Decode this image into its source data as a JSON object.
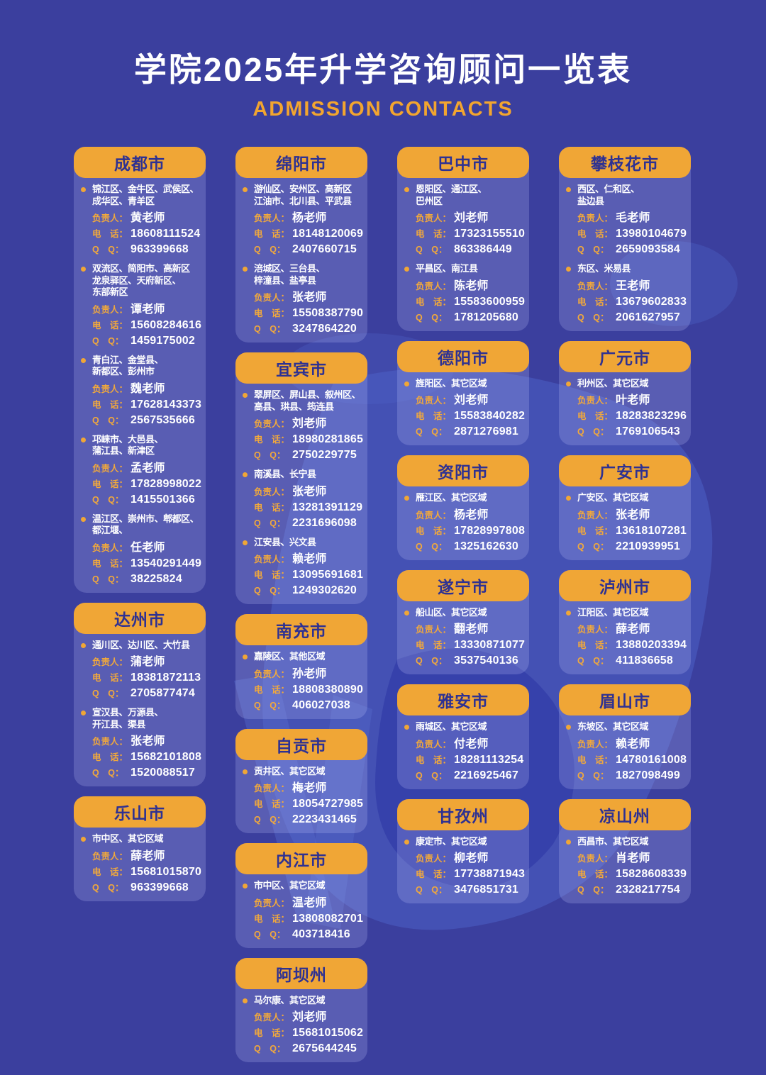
{
  "page": {
    "title": "学院2025年升学咨询顾问一览表",
    "subtitle": "ADMISSION CONTACTS"
  },
  "labels": {
    "person": "负责人：",
    "phone": "电　话：",
    "qq": "Q　Q："
  },
  "colors": {
    "background": "#3B3F9E",
    "card_background": "rgba(196,202,255,0.22)",
    "header_orange": "#F0A636",
    "header_text": "#2E3192",
    "accent_orange": "#F2A52F",
    "text_white": "#FFFFFF",
    "map_blob_light": "#4E63C9",
    "map_blob_dark": "#2B34A4"
  },
  "columns": [
    {
      "cards": [
        {
          "city": "成都市",
          "entries": [
            {
              "regions": "锦江区、金牛区、武侯区、\n成华区、青羊区",
              "person": "黄老师",
              "phone": "18608111524",
              "qq": "963399668"
            },
            {
              "regions": "双流区、简阳市、高新区\n龙泉驿区、天府新区、\n东部新区",
              "person": "谭老师",
              "phone": "15608284616",
              "qq": "1459175002"
            },
            {
              "regions": "青白江、金堂县、\n新都区、彭州市",
              "person": "魏老师",
              "phone": "17628143373",
              "qq": "2567535666"
            },
            {
              "regions": "邛崃市、大邑县、\n蒲江县、新津区",
              "person": "孟老师",
              "phone": "17828998022",
              "qq": "1415501366"
            },
            {
              "regions": "温江区、崇州市、郫都区、\n都江堰、",
              "person": "任老师",
              "phone": "13540291449",
              "qq": "38225824"
            }
          ]
        },
        {
          "city": "达州市",
          "entries": [
            {
              "regions": "通川区、达川区、大竹县",
              "person": "蒲老师",
              "phone": "18381872113",
              "qq": "2705877474"
            },
            {
              "regions": "宣汉县、万源县、\n开江县、渠县",
              "person": "张老师",
              "phone": "15682101808",
              "qq": "1520088517"
            }
          ]
        },
        {
          "city": "乐山市",
          "entries": [
            {
              "regions": "市中区、其它区域",
              "person": "薛老师",
              "phone": "15681015870",
              "qq": "963399668"
            }
          ]
        }
      ]
    },
    {
      "cards": [
        {
          "city": "绵阳市",
          "entries": [
            {
              "regions": "游仙区、安州区、高新区\n江油市、北川县、平武县",
              "person": "杨老师",
              "phone": "18148120069",
              "qq": "2407660715"
            },
            {
              "regions": "涪城区、三台县、\n梓潼县、盐亭县",
              "person": "张老师",
              "phone": "15508387790",
              "qq": "3247864220"
            }
          ]
        },
        {
          "city": "宜宾市",
          "entries": [
            {
              "regions": "翠屏区、屏山县、叙州区、\n高县、珙县、筠连县",
              "person": "刘老师",
              "phone": "18980281865",
              "qq": "2750229775"
            },
            {
              "regions": "南溪县、长宁县",
              "person": "张老师",
              "phone": "13281391129",
              "qq": "2231696098"
            },
            {
              "regions": "江安县、兴文县",
              "person": "赖老师",
              "phone": "13095691681",
              "qq": "1249302620"
            }
          ]
        },
        {
          "city": "南充市",
          "entries": [
            {
              "regions": "嘉陵区、其他区域",
              "person": "孙老师",
              "phone": "18808380890",
              "qq": "406027038"
            }
          ]
        },
        {
          "city": "自贡市",
          "entries": [
            {
              "regions": "贡井区、其它区域",
              "person": "梅老师",
              "phone": "18054727985",
              "qq": "2223431465"
            }
          ]
        },
        {
          "city": "内江市",
          "entries": [
            {
              "regions": "市中区、其它区域",
              "person": "温老师",
              "phone": "13808082701",
              "qq": "403718416"
            }
          ]
        },
        {
          "city": "阿坝州",
          "entries": [
            {
              "regions": "马尔康、其它区域",
              "person": "刘老师",
              "phone": "15681015062",
              "qq": "2675644245"
            }
          ]
        }
      ]
    },
    {
      "cards": [
        {
          "city": "巴中市",
          "entries": [
            {
              "regions": "恩阳区、通江区、\n巴州区",
              "person": "刘老师",
              "phone": "17323155510",
              "qq": "863386449"
            },
            {
              "regions": "平昌区、南江县",
              "person": "陈老师",
              "phone": "15583600959",
              "qq": "1781205680"
            }
          ]
        },
        {
          "city": "德阳市",
          "entries": [
            {
              "regions": "旌阳区、其它区域",
              "person": "刘老师",
              "phone": "15583840282",
              "qq": "2871276981"
            }
          ]
        },
        {
          "city": "资阳市",
          "entries": [
            {
              "regions": "雁江区、其它区域",
              "person": "杨老师",
              "phone": "17828997808",
              "qq": "1325162630"
            }
          ]
        },
        {
          "city": "遂宁市",
          "entries": [
            {
              "regions": "船山区、其它区域",
              "person": "翻老师",
              "phone": "13330871077",
              "qq": "3537540136"
            }
          ]
        },
        {
          "city": "雅安市",
          "entries": [
            {
              "regions": "雨城区、其它区域",
              "person": "付老师",
              "phone": "18281113254",
              "qq": "2216925467"
            }
          ]
        },
        {
          "city": "甘孜州",
          "entries": [
            {
              "regions": "康定市、其它区域",
              "person": "柳老师",
              "phone": "17738871943",
              "qq": "3476851731"
            }
          ]
        }
      ]
    },
    {
      "cards": [
        {
          "city": "攀枝花市",
          "entries": [
            {
              "regions": "西区、仁和区、\n盐边县",
              "person": "毛老师",
              "phone": "13980104679",
              "qq": "2659093584"
            },
            {
              "regions": "东区、米易县",
              "person": "王老师",
              "phone": "13679602833",
              "qq": "2061627957"
            }
          ]
        },
        {
          "city": "广元市",
          "entries": [
            {
              "regions": "利州区、其它区域",
              "person": "叶老师",
              "phone": "18283823296",
              "qq": "1769106543"
            }
          ]
        },
        {
          "city": "广安市",
          "entries": [
            {
              "regions": "广安区、其它区域",
              "person": "张老师",
              "phone": "13618107281",
              "qq": "2210939951"
            }
          ]
        },
        {
          "city": "泸州市",
          "entries": [
            {
              "regions": "江阳区、其它区域",
              "person": "薛老师",
              "phone": "13880203394",
              "qq": "411836658"
            }
          ]
        },
        {
          "city": "眉山市",
          "entries": [
            {
              "regions": "东坡区、其它区域",
              "person": "赖老师",
              "phone": "14780161008",
              "qq": "1827098499"
            }
          ]
        },
        {
          "city": "凉山州",
          "entries": [
            {
              "regions": "西昌市、其它区域",
              "person": "肖老师",
              "phone": "15828608339",
              "qq": "2328217754"
            }
          ]
        }
      ]
    }
  ]
}
